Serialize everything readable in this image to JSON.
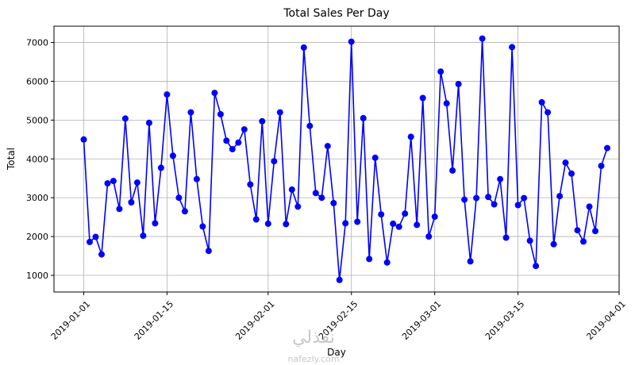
{
  "chart_data": {
    "type": "line",
    "title": "Total Sales Per Day",
    "xlabel": "Day",
    "ylabel": "Total",
    "x_start_date": "2019-01-01",
    "xlim": [
      "2018-12-27",
      "2019-04-01"
    ],
    "ylim": [
      570,
      7420
    ],
    "yticks": [
      1000,
      2000,
      3000,
      4000,
      5000,
      6000,
      7000
    ],
    "xticks": [
      "2019-01-01",
      "2019-01-15",
      "2019-02-01",
      "2019-02-15",
      "2019-03-01",
      "2019-03-15",
      "2019-04-01"
    ],
    "grid": true,
    "series": [
      {
        "name": "",
        "color": "#0000ff",
        "marker": "circle",
        "values": [
          4500,
          1860,
          1990,
          1540,
          3370,
          3430,
          2710,
          5040,
          2880,
          3390,
          2020,
          4930,
          2340,
          3770,
          5660,
          4080,
          3000,
          2650,
          5200,
          3480,
          2260,
          1630,
          5700,
          5150,
          4470,
          4250,
          4420,
          4760,
          3340,
          2440,
          4970,
          2330,
          3940,
          5200,
          2320,
          3210,
          2770,
          6870,
          4850,
          3120,
          3000,
          4330,
          2860,
          880,
          2340,
          7020,
          2380,
          5050,
          1420,
          4030,
          2570,
          1330,
          2330,
          2250,
          2590,
          4570,
          2300,
          5570,
          2000,
          2510,
          6250,
          5430,
          3700,
          5930,
          2950,
          1360,
          2990,
          7100,
          3020,
          2830,
          3480,
          1970,
          6880,
          2810,
          2990,
          1890,
          1240,
          5460,
          5200,
          1800,
          3040,
          3900,
          3620,
          2160,
          1870,
          2770,
          2140,
          3820,
          4280
        ]
      }
    ]
  },
  "watermark": {
    "arabic": "نفذلي",
    "latin": "nafezly.com"
  }
}
